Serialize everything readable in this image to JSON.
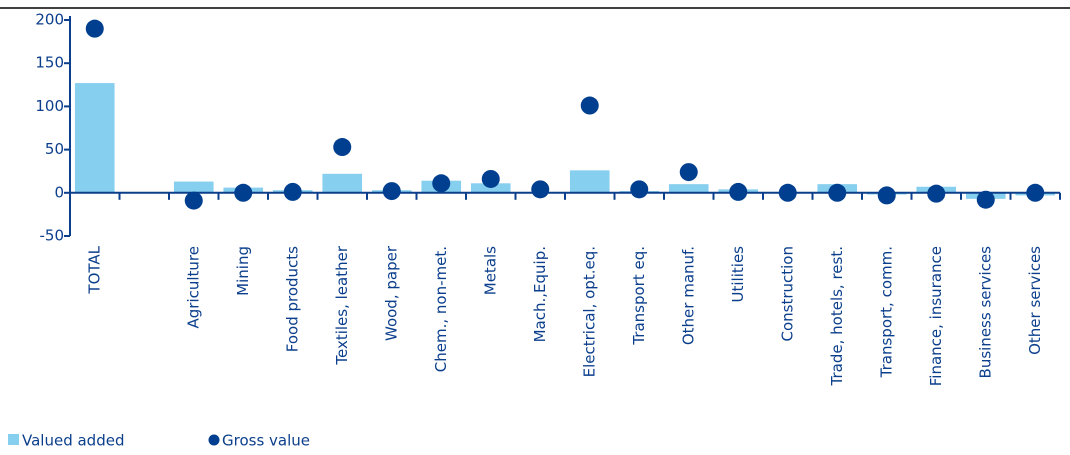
{
  "chart_data": {
    "type": "bar_dot",
    "categories": [
      "TOTAL",
      null,
      "Agriculture",
      "Mining",
      "Food products",
      "Textiles, leather",
      "Wood, paper",
      "Chem., non-met.",
      "Metals",
      "Mach.,Equip.",
      "Electrical, opt.eq.",
      "Transport eq.",
      "Other manuf.",
      "Utilities",
      "Construction",
      "Trade, hotels, rest.",
      "Transport, comm.",
      "Finance, insurance",
      "Business services",
      "Other services"
    ],
    "series": [
      {
        "name": "Valued added",
        "color": "#87cfee",
        "kind": "bar",
        "values": [
          127,
          null,
          13,
          6,
          3,
          22,
          3,
          14,
          11,
          1,
          26,
          2,
          10,
          4,
          1,
          10,
          -2,
          7,
          -7,
          -3
        ]
      },
      {
        "name": "Gross value",
        "color": "#003f8f",
        "kind": "dot",
        "values": [
          190,
          null,
          -9,
          0,
          1,
          53,
          2,
          11,
          16,
          4,
          101,
          4,
          24,
          1,
          0,
          0,
          -3,
          -1,
          -8,
          0
        ]
      }
    ],
    "ylim": [
      -50,
      200
    ],
    "yticks": [
      -50,
      0,
      50,
      100,
      150,
      200
    ]
  }
}
